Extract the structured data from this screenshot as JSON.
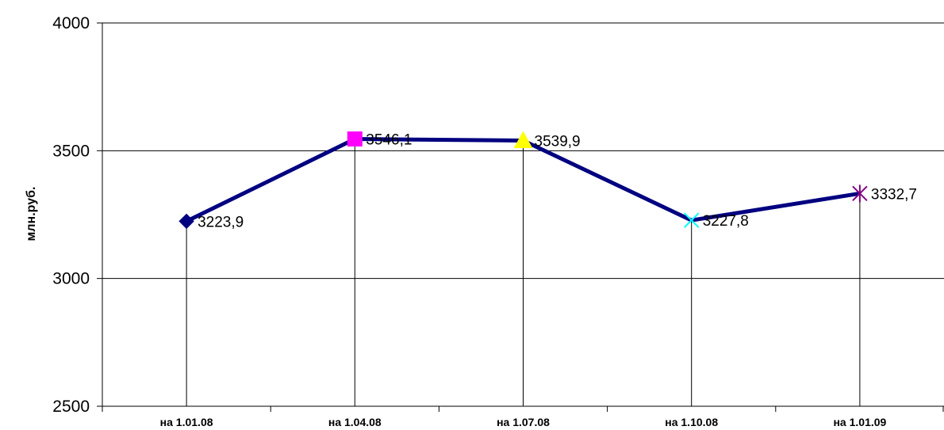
{
  "chart_data": {
    "type": "line",
    "title": "",
    "xlabel": "",
    "ylabel": "млн.руб.",
    "ylim": [
      2500,
      4000
    ],
    "yticks": [
      2500,
      3000,
      3500,
      4000
    ],
    "grid": true,
    "categories": [
      "на 1.01.08",
      "на 1.04.08",
      "на 1.07.08",
      "на 1.10.08",
      "на 1.01.09"
    ],
    "series": [
      {
        "values": [
          3223.9,
          3546.1,
          3539.9,
          3227.8,
          3332.7
        ],
        "labels": [
          "3223,9",
          "3546,1",
          "3539,9",
          "3227,8",
          "3332,7"
        ],
        "color": "#000080",
        "markers": [
          "diamond",
          "square",
          "triangle",
          "x",
          "star"
        ],
        "marker_colors": [
          "#000080",
          "#FF00FF",
          "#FFFF00",
          "#00FFFF",
          "#800080"
        ]
      }
    ]
  }
}
